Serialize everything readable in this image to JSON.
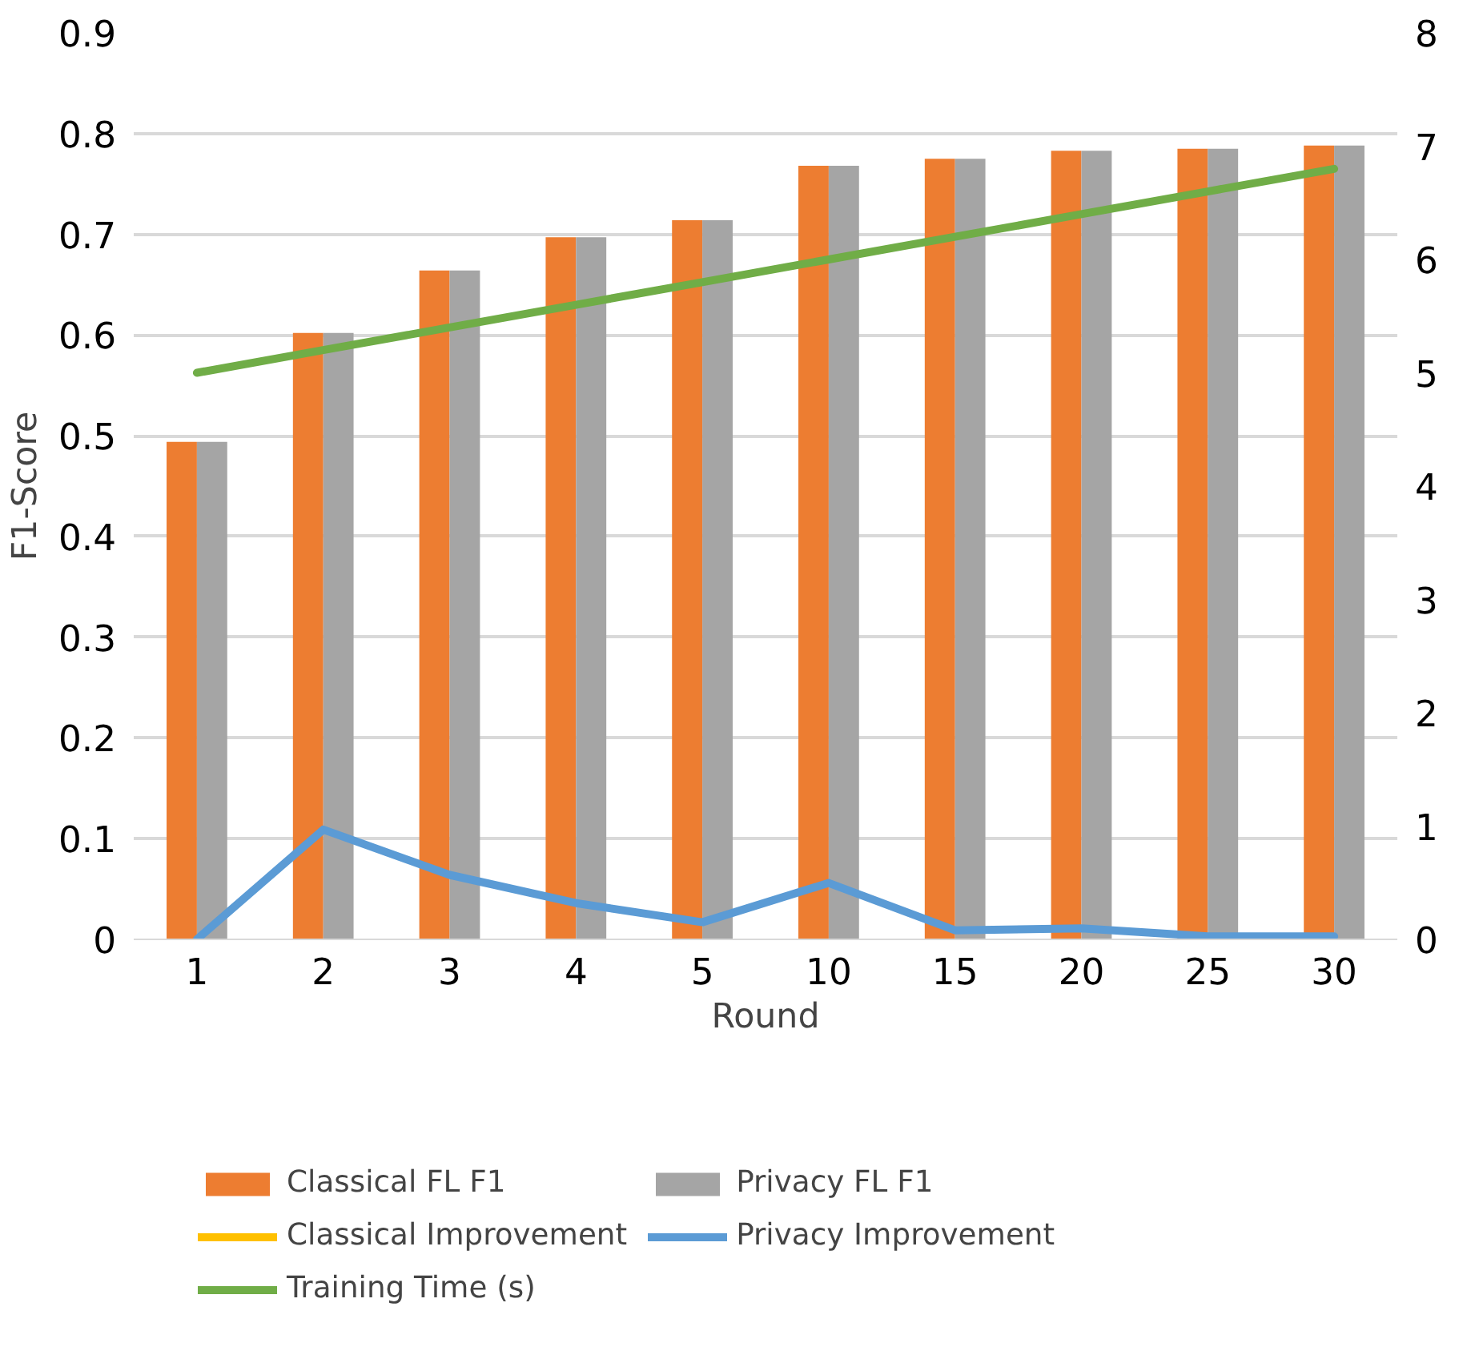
{
  "chart_data": {
    "type": "bar",
    "xlabel": "Round",
    "ylabel": "F1-Score",
    "categories": [
      "1",
      "2",
      "3",
      "4",
      "5",
      "10",
      "15",
      "20",
      "25",
      "30"
    ],
    "series": [
      {
        "name": "Classical FL F1",
        "color": "#ed7d31",
        "values": [
          0.494,
          0.602,
          0.664,
          0.697,
          0.714,
          0.768,
          0.775,
          0.783,
          0.785,
          0.788
        ]
      },
      {
        "name": "Privacy FL F1",
        "color": "#a5a5a5",
        "values": [
          0.494,
          0.602,
          0.664,
          0.697,
          0.714,
          0.768,
          0.775,
          0.783,
          0.785,
          0.788
        ]
      },
      {
        "name": "Classical Improvement",
        "type": "line",
        "color": "#ffc000",
        "values": [
          null,
          null,
          null,
          null,
          null,
          null,
          null,
          null,
          null,
          null
        ]
      },
      {
        "name": "Privacy Improvement",
        "type": "line",
        "color": "#5b9bd5",
        "values": [
          0,
          0.109,
          0.064,
          0.036,
          0.017,
          0.056,
          0.009,
          0.011,
          0.003,
          0.003
        ]
      },
      {
        "name": "Training Time (s)",
        "type": "line",
        "axis": "y2",
        "color": "#70ad47",
        "values": [
          5.0,
          5.2,
          5.4,
          5.6,
          5.8,
          6.0,
          6.2,
          6.4,
          6.6,
          6.8
        ]
      }
    ],
    "ylim": [
      0,
      0.9
    ],
    "yticks": [
      0,
      0.1,
      0.2,
      0.3,
      0.4,
      0.5,
      0.6,
      0.7,
      0.8,
      0.9
    ],
    "y2lim": [
      0,
      8
    ],
    "y2ticks": [
      0,
      1,
      2,
      3,
      4,
      5,
      6,
      7,
      8
    ],
    "grid": "y",
    "legend": "bottom"
  }
}
